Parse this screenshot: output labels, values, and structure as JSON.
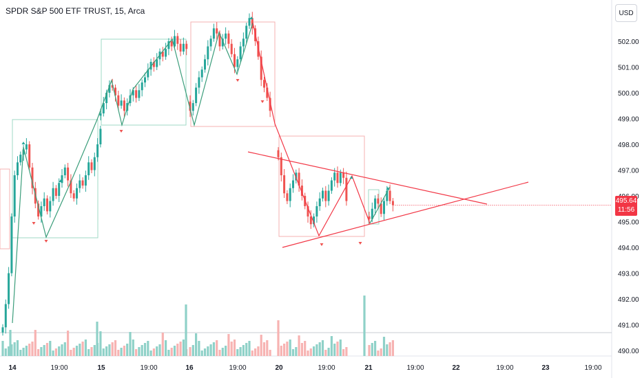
{
  "header": {
    "title": "SPDR S&P 500 ETF TRUST, 15, Arca"
  },
  "currency_button": {
    "label": "USD"
  },
  "last_price": {
    "value": "495.64",
    "countdown": "11:56"
  },
  "colors": {
    "up": "#26a69a",
    "down": "#ef5350",
    "up_volume": "#8fd1c8",
    "down_volume": "#f7b3b2",
    "line": "#f23645",
    "zigzag": "#3a9d7a"
  },
  "chart_data": {
    "type": "candlestick",
    "ylim": [
      489.8,
      503.4
    ],
    "y_ticks": [
      "502.00",
      "501.00",
      "500.00",
      "499.00",
      "498.00",
      "497.00",
      "496.00",
      "495.00",
      "494.00",
      "493.00",
      "492.00",
      "491.00",
      "490.00"
    ],
    "x_ticks": [
      "14",
      "19:00",
      "15",
      "19:00",
      "16",
      "19:00",
      "20",
      "19:00",
      "21",
      "19:00",
      "22",
      "19:00",
      "23",
      "19:00"
    ],
    "sessions": [
      {
        "day": "14",
        "closes": [
          490.9,
          491.8,
          493.0,
          495.2,
          496.8,
          497.3,
          497.6,
          497.8,
          498.0,
          497.1,
          496.3,
          495.7,
          495.2,
          495.6,
          495.9,
          495.4,
          495.8,
          496.3,
          496.0,
          496.5,
          496.8,
          497.1,
          496.6,
          496.1,
          495.9,
          496.3,
          496.6,
          496.4,
          496.8,
          497.3,
          497.0,
          497.5,
          498.0,
          498.6
        ]
      },
      {
        "day": "15",
        "closes": [
          499.2,
          499.6,
          500.0,
          500.3,
          500.2,
          499.9,
          499.5,
          499.7,
          499.3,
          499.6,
          499.9,
          500.1,
          499.8,
          500.1,
          500.4,
          500.6,
          500.9,
          501.2,
          501.0,
          501.3,
          501.6,
          501.4,
          501.7,
          502.0,
          501.8,
          502.2,
          501.9,
          501.6,
          501.9,
          501.7
        ]
      },
      {
        "day": "16",
        "closes": [
          499.3,
          499.6,
          500.2,
          500.6,
          500.9,
          501.3,
          501.8,
          502.1,
          502.5,
          502.3,
          501.8,
          502.1,
          502.3,
          501.9,
          501.5,
          501.0,
          501.3,
          501.8,
          502.1,
          502.6,
          502.9,
          502.5,
          502.0,
          501.4,
          500.5,
          500.2,
          499.8,
          499.3
        ]
      },
      {
        "day": "20",
        "closes": [
          497.5,
          496.8,
          496.1,
          495.8,
          496.3,
          496.6,
          496.9,
          496.4,
          496.0,
          495.6,
          495.2,
          494.9,
          495.2,
          495.6,
          495.9,
          496.2,
          495.8,
          496.2,
          496.6,
          496.9,
          496.5,
          496.9,
          496.7,
          495.8
        ]
      },
      {
        "day": "21",
        "closes": [
          495.1,
          495.5,
          495.9,
          495.7,
          495.3,
          495.8,
          496.2,
          495.8,
          495.64
        ]
      }
    ],
    "volume_scale": [
      0,
      100
    ],
    "patterns": [
      {
        "shape": "zigzag",
        "color": "green"
      },
      {
        "shape": "triangle",
        "color": "red",
        "apex_price": 495.9
      }
    ]
  }
}
